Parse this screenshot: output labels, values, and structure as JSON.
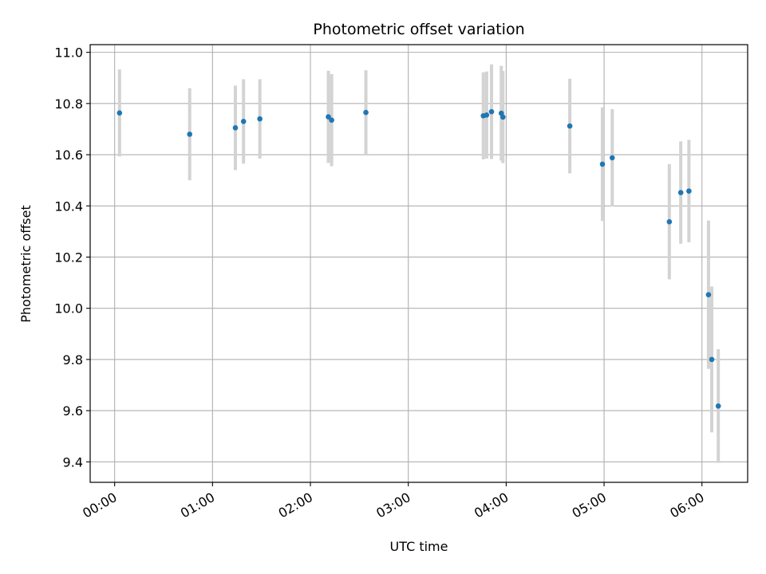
{
  "chart_data": {
    "type": "scatter",
    "title": "Photometric offset variation",
    "xlabel": "UTC time",
    "ylabel": "Photometric offset",
    "x_tick_labels": [
      "00:00",
      "01:00",
      "02:00",
      "03:00",
      "04:00",
      "05:00",
      "06:00"
    ],
    "x_tick_minutes": [
      0,
      60,
      120,
      180,
      240,
      300,
      360
    ],
    "xlim_minutes": [
      -15,
      388
    ],
    "y_ticks": [
      9.4,
      9.6,
      9.8,
      10.0,
      10.2,
      10.4,
      10.6,
      10.8,
      11.0
    ],
    "y_tick_labels": [
      "9.4",
      "9.6",
      "9.8",
      "10.0",
      "10.2",
      "10.4",
      "10.6",
      "10.8",
      "11.0"
    ],
    "ylim": [
      9.32,
      11.03
    ],
    "grid": true,
    "point_color": "#1f77b4",
    "errorbar_color": "#d3d3d3",
    "points": [
      {
        "t": 3,
        "y": 10.763,
        "err": 0.17
      },
      {
        "t": 46,
        "y": 10.68,
        "err": 0.18
      },
      {
        "t": 74,
        "y": 10.705,
        "err": 0.165
      },
      {
        "t": 79,
        "y": 10.73,
        "err": 0.165
      },
      {
        "t": 89,
        "y": 10.74,
        "err": 0.155
      },
      {
        "t": 131,
        "y": 10.748,
        "err": 0.18
      },
      {
        "t": 133,
        "y": 10.735,
        "err": 0.18
      },
      {
        "t": 154,
        "y": 10.765,
        "err": 0.165
      },
      {
        "t": 226,
        "y": 10.752,
        "err": 0.17
      },
      {
        "t": 228,
        "y": 10.755,
        "err": 0.17
      },
      {
        "t": 231,
        "y": 10.768,
        "err": 0.185
      },
      {
        "t": 237,
        "y": 10.762,
        "err": 0.185
      },
      {
        "t": 238,
        "y": 10.747,
        "err": 0.18
      },
      {
        "t": 279,
        "y": 10.712,
        "err": 0.185
      },
      {
        "t": 299,
        "y": 10.563,
        "err": 0.222
      },
      {
        "t": 305,
        "y": 10.588,
        "err": 0.19
      },
      {
        "t": 340,
        "y": 10.338,
        "err": 0.225
      },
      {
        "t": 347,
        "y": 10.452,
        "err": 0.2
      },
      {
        "t": 352,
        "y": 10.458,
        "err": 0.2
      },
      {
        "t": 364,
        "y": 10.053,
        "err": 0.29
      },
      {
        "t": 366,
        "y": 9.8,
        "err": 0.285
      },
      {
        "t": 370,
        "y": 9.618,
        "err": 0.222
      }
    ]
  }
}
